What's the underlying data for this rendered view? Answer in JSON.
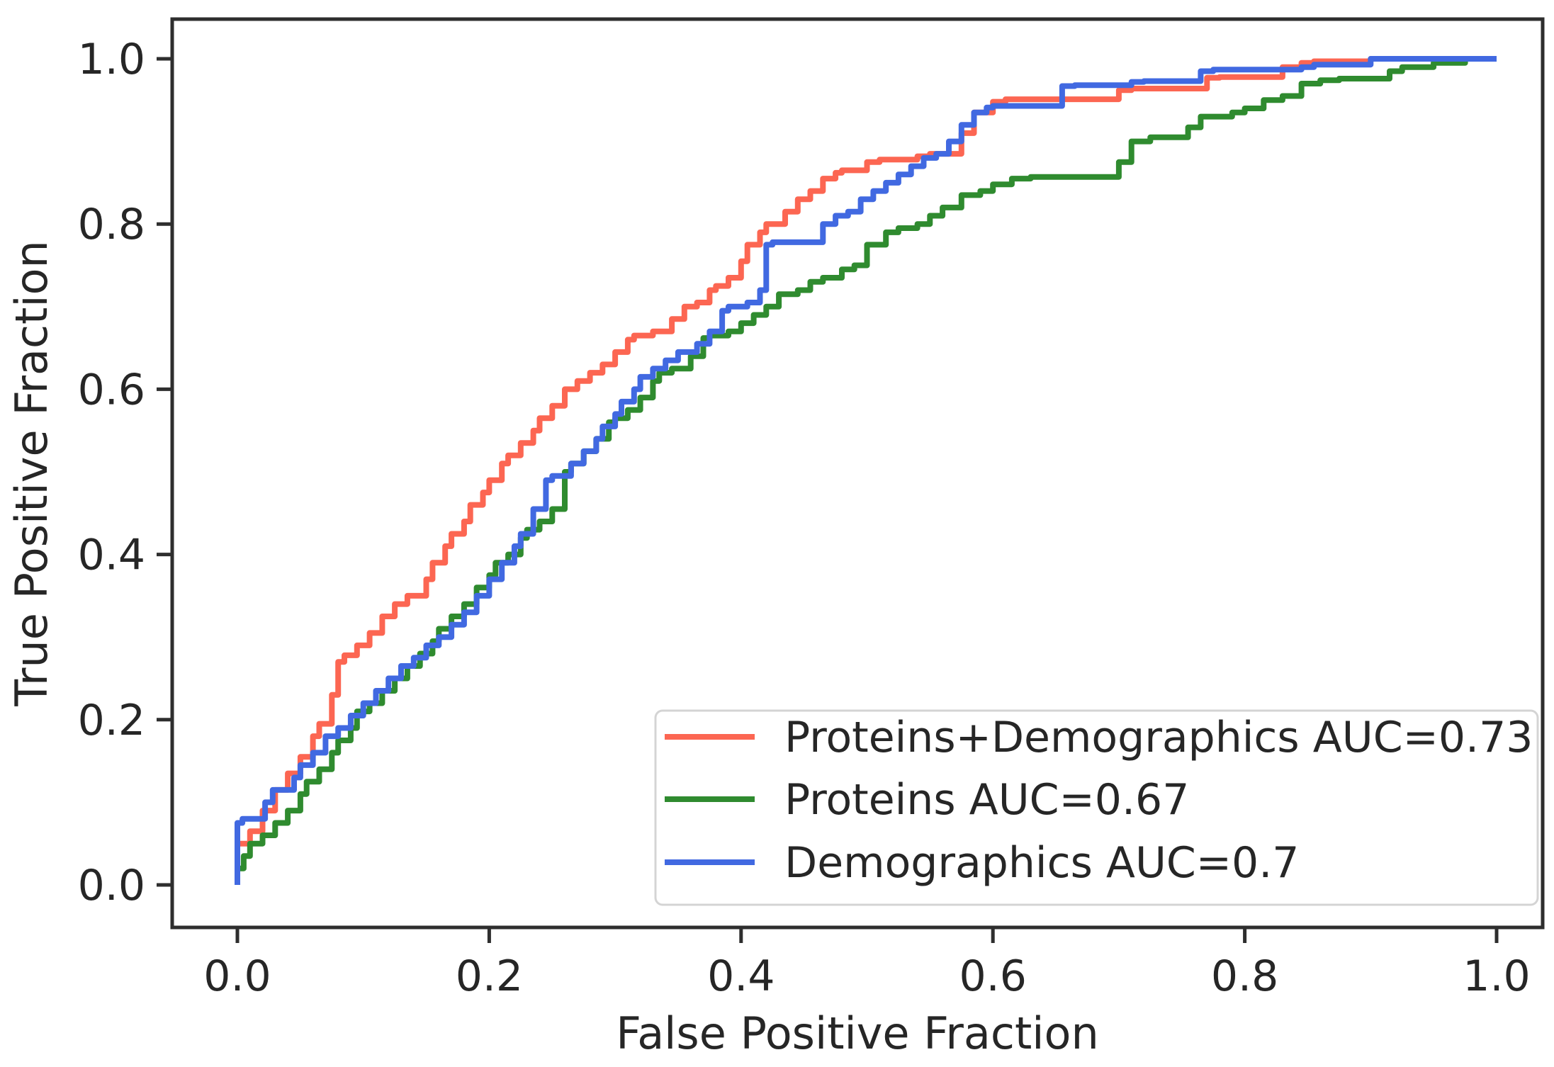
{
  "figure": {
    "background": "#ffffff",
    "spine_color": "#2e2e2e",
    "text_color": "#262626",
    "legend_border_color": "#d4d4d4",
    "legend_background": "#ffffff"
  },
  "chart_data": {
    "type": "line",
    "subtype": "roc-step-curves",
    "title": "",
    "xlabel": "False Positive Fraction",
    "ylabel": "True Positive Fraction",
    "xlim": [
      -0.052,
      1.037
    ],
    "ylim": [
      -0.052,
      1.048
    ],
    "grid": false,
    "x_ticks": [
      0.0,
      0.2,
      0.4,
      0.6,
      0.8,
      1.0
    ],
    "y_ticks": [
      0.0,
      0.2,
      0.4,
      0.6,
      0.8,
      1.0
    ],
    "x_tick_labels": [
      "0.0",
      "0.2",
      "0.4",
      "0.6",
      "0.8",
      "1.0"
    ],
    "y_tick_labels": [
      "0.0",
      "0.2",
      "0.4",
      "0.6",
      "0.8",
      "1.0"
    ],
    "legend": {
      "position": "lower right",
      "entries": [
        {
          "label": "Proteins+Demographics AUC=0.73",
          "color": "#fc6652"
        },
        {
          "label": "Proteins AUC=0.67",
          "color": "#2f8b2f"
        },
        {
          "label": "Demographics AUC=0.7",
          "color": "#4169e1"
        }
      ]
    },
    "series": [
      {
        "name": "Proteins+Demographics",
        "auc": 0.73,
        "color": "#fc6652",
        "points": [
          [
            0,
            0
          ],
          [
            0,
            0.033
          ],
          [
            0.01,
            0.05
          ],
          [
            0.02,
            0.065
          ],
          [
            0.03,
            0.09
          ],
          [
            0.04,
            0.115
          ],
          [
            0.05,
            0.135
          ],
          [
            0.06,
            0.155
          ],
          [
            0.065,
            0.18
          ],
          [
            0.075,
            0.195
          ],
          [
            0.08,
            0.23
          ],
          [
            0.085,
            0.27
          ],
          [
            0.095,
            0.278
          ],
          [
            0.105,
            0.29
          ],
          [
            0.115,
            0.305
          ],
          [
            0.125,
            0.325
          ],
          [
            0.135,
            0.34
          ],
          [
            0.15,
            0.35
          ],
          [
            0.155,
            0.37
          ],
          [
            0.165,
            0.39
          ],
          [
            0.17,
            0.41
          ],
          [
            0.18,
            0.425
          ],
          [
            0.185,
            0.44
          ],
          [
            0.195,
            0.46
          ],
          [
            0.2,
            0.475
          ],
          [
            0.21,
            0.49
          ],
          [
            0.215,
            0.51
          ],
          [
            0.225,
            0.52
          ],
          [
            0.235,
            0.535
          ],
          [
            0.24,
            0.55
          ],
          [
            0.25,
            0.565
          ],
          [
            0.26,
            0.58
          ],
          [
            0.27,
            0.6
          ],
          [
            0.28,
            0.61
          ],
          [
            0.29,
            0.62
          ],
          [
            0.3,
            0.63
          ],
          [
            0.31,
            0.645
          ],
          [
            0.315,
            0.66
          ],
          [
            0.33,
            0.665
          ],
          [
            0.345,
            0.67
          ],
          [
            0.355,
            0.685
          ],
          [
            0.365,
            0.7
          ],
          [
            0.375,
            0.705
          ],
          [
            0.38,
            0.72
          ],
          [
            0.39,
            0.725
          ],
          [
            0.4,
            0.735
          ],
          [
            0.405,
            0.755
          ],
          [
            0.415,
            0.775
          ],
          [
            0.42,
            0.79
          ],
          [
            0.435,
            0.8
          ],
          [
            0.445,
            0.815
          ],
          [
            0.455,
            0.83
          ],
          [
            0.465,
            0.84
          ],
          [
            0.475,
            0.855
          ],
          [
            0.48,
            0.862
          ],
          [
            0.5,
            0.865
          ],
          [
            0.51,
            0.875
          ],
          [
            0.54,
            0.878
          ],
          [
            0.55,
            0.882
          ],
          [
            0.575,
            0.885
          ],
          [
            0.585,
            0.91
          ],
          [
            0.6,
            0.935
          ],
          [
            0.61,
            0.948
          ],
          [
            0.7,
            0.951
          ],
          [
            0.71,
            0.962
          ],
          [
            0.77,
            0.964
          ],
          [
            0.78,
            0.977
          ],
          [
            0.83,
            0.978
          ],
          [
            0.845,
            0.99
          ],
          [
            0.855,
            0.995
          ],
          [
            0.9,
            0.997
          ],
          [
            0.93,
            1
          ],
          [
            1,
            1
          ]
        ]
      },
      {
        "name": "Proteins",
        "auc": 0.67,
        "color": "#2f8b2f",
        "points": [
          [
            0,
            0
          ],
          [
            0.005,
            0.02
          ],
          [
            0.01,
            0.035
          ],
          [
            0.02,
            0.05
          ],
          [
            0.03,
            0.06
          ],
          [
            0.04,
            0.075
          ],
          [
            0.05,
            0.09
          ],
          [
            0.055,
            0.11
          ],
          [
            0.065,
            0.125
          ],
          [
            0.075,
            0.14
          ],
          [
            0.08,
            0.16
          ],
          [
            0.09,
            0.175
          ],
          [
            0.095,
            0.19
          ],
          [
            0.105,
            0.21
          ],
          [
            0.115,
            0.22
          ],
          [
            0.125,
            0.235
          ],
          [
            0.135,
            0.25
          ],
          [
            0.145,
            0.265
          ],
          [
            0.155,
            0.28
          ],
          [
            0.16,
            0.295
          ],
          [
            0.17,
            0.31
          ],
          [
            0.18,
            0.325
          ],
          [
            0.19,
            0.34
          ],
          [
            0.2,
            0.36
          ],
          [
            0.205,
            0.375
          ],
          [
            0.215,
            0.39
          ],
          [
            0.225,
            0.4
          ],
          [
            0.23,
            0.42
          ],
          [
            0.24,
            0.43
          ],
          [
            0.25,
            0.44
          ],
          [
            0.26,
            0.455
          ],
          [
            0.265,
            0.5
          ],
          [
            0.275,
            0.51
          ],
          [
            0.285,
            0.525
          ],
          [
            0.295,
            0.54
          ],
          [
            0.3,
            0.56
          ],
          [
            0.31,
            0.565
          ],
          [
            0.32,
            0.575
          ],
          [
            0.33,
            0.59
          ],
          [
            0.335,
            0.61
          ],
          [
            0.345,
            0.62
          ],
          [
            0.36,
            0.625
          ],
          [
            0.37,
            0.64
          ],
          [
            0.375,
            0.662
          ],
          [
            0.39,
            0.665
          ],
          [
            0.4,
            0.67
          ],
          [
            0.41,
            0.68
          ],
          [
            0.42,
            0.69
          ],
          [
            0.43,
            0.7
          ],
          [
            0.445,
            0.715
          ],
          [
            0.455,
            0.72
          ],
          [
            0.465,
            0.73
          ],
          [
            0.48,
            0.735
          ],
          [
            0.49,
            0.745
          ],
          [
            0.5,
            0.75
          ],
          [
            0.515,
            0.775
          ],
          [
            0.525,
            0.79
          ],
          [
            0.54,
            0.795
          ],
          [
            0.55,
            0.8
          ],
          [
            0.56,
            0.81
          ],
          [
            0.575,
            0.82
          ],
          [
            0.59,
            0.835
          ],
          [
            0.6,
            0.84
          ],
          [
            0.615,
            0.848
          ],
          [
            0.63,
            0.855
          ],
          [
            0.7,
            0.857
          ],
          [
            0.71,
            0.875
          ],
          [
            0.725,
            0.9
          ],
          [
            0.755,
            0.905
          ],
          [
            0.765,
            0.917
          ],
          [
            0.79,
            0.93
          ],
          [
            0.8,
            0.935
          ],
          [
            0.815,
            0.94
          ],
          [
            0.83,
            0.95
          ],
          [
            0.845,
            0.955
          ],
          [
            0.86,
            0.97
          ],
          [
            0.875,
            0.974
          ],
          [
            0.915,
            0.976
          ],
          [
            0.925,
            0.985
          ],
          [
            0.95,
            0.99
          ],
          [
            0.975,
            0.995
          ],
          [
            1,
            1
          ]
        ]
      },
      {
        "name": "Demographics",
        "auc": 0.7,
        "color": "#4169e1",
        "points": [
          [
            0,
            0
          ],
          [
            0,
            0.045
          ],
          [
            0.004,
            0.075
          ],
          [
            0.022,
            0.08
          ],
          [
            0.028,
            0.1
          ],
          [
            0.045,
            0.115
          ],
          [
            0.05,
            0.13
          ],
          [
            0.06,
            0.145
          ],
          [
            0.07,
            0.16
          ],
          [
            0.08,
            0.18
          ],
          [
            0.09,
            0.19
          ],
          [
            0.1,
            0.205
          ],
          [
            0.11,
            0.22
          ],
          [
            0.12,
            0.235
          ],
          [
            0.13,
            0.25
          ],
          [
            0.14,
            0.265
          ],
          [
            0.15,
            0.275
          ],
          [
            0.16,
            0.29
          ],
          [
            0.17,
            0.3
          ],
          [
            0.18,
            0.315
          ],
          [
            0.19,
            0.33
          ],
          [
            0.2,
            0.35
          ],
          [
            0.21,
            0.37
          ],
          [
            0.22,
            0.39
          ],
          [
            0.225,
            0.41
          ],
          [
            0.235,
            0.425
          ],
          [
            0.245,
            0.455
          ],
          [
            0.25,
            0.49
          ],
          [
            0.265,
            0.495
          ],
          [
            0.275,
            0.51
          ],
          [
            0.285,
            0.525
          ],
          [
            0.29,
            0.54
          ],
          [
            0.3,
            0.555
          ],
          [
            0.305,
            0.57
          ],
          [
            0.315,
            0.585
          ],
          [
            0.32,
            0.6
          ],
          [
            0.33,
            0.615
          ],
          [
            0.34,
            0.625
          ],
          [
            0.35,
            0.635
          ],
          [
            0.365,
            0.645
          ],
          [
            0.375,
            0.655
          ],
          [
            0.385,
            0.67
          ],
          [
            0.39,
            0.695
          ],
          [
            0.405,
            0.7
          ],
          [
            0.415,
            0.705
          ],
          [
            0.42,
            0.72
          ],
          [
            0.425,
            0.775
          ],
          [
            0.465,
            0.778
          ],
          [
            0.475,
            0.8
          ],
          [
            0.485,
            0.81
          ],
          [
            0.495,
            0.815
          ],
          [
            0.505,
            0.83
          ],
          [
            0.515,
            0.84
          ],
          [
            0.525,
            0.85
          ],
          [
            0.535,
            0.86
          ],
          [
            0.545,
            0.87
          ],
          [
            0.555,
            0.88
          ],
          [
            0.565,
            0.885
          ],
          [
            0.575,
            0.9
          ],
          [
            0.585,
            0.92
          ],
          [
            0.595,
            0.935
          ],
          [
            0.6,
            0.941
          ],
          [
            0.655,
            0.943
          ],
          [
            0.665,
            0.967
          ],
          [
            0.71,
            0.968
          ],
          [
            0.72,
            0.972
          ],
          [
            0.765,
            0.973
          ],
          [
            0.775,
            0.985
          ],
          [
            0.845,
            0.987
          ],
          [
            0.855,
            0.99
          ],
          [
            0.9,
            0.993
          ],
          [
            0.94,
            1
          ],
          [
            1,
            1
          ]
        ]
      }
    ]
  }
}
